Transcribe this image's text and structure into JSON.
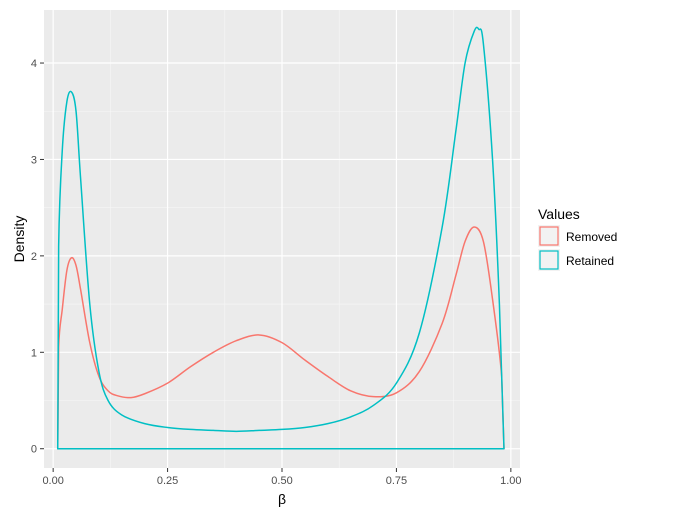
{
  "chart_data": {
    "type": "line",
    "subtype": "density",
    "xlabel": "β",
    "ylabel": "Density",
    "xlim": [
      -0.02,
      1.02
    ],
    "ylim": [
      -0.2,
      4.55
    ],
    "xticks": [
      0.0,
      0.25,
      0.5,
      0.75,
      1.0
    ],
    "xtick_labels": [
      "0.00",
      "0.25",
      "0.50",
      "0.75",
      "1.00"
    ],
    "yticks": [
      0,
      1,
      2,
      3,
      4
    ],
    "ytick_labels": [
      "0",
      "1",
      "2",
      "3",
      "4"
    ],
    "grid": true,
    "background": "#ebebeb",
    "legend": {
      "title": "Values",
      "position": "right"
    },
    "series": [
      {
        "name": "Removed",
        "color": "#f8766d",
        "x": [
          0.01,
          0.012,
          0.02,
          0.03,
          0.04,
          0.05,
          0.06,
          0.08,
          0.1,
          0.12,
          0.14,
          0.17,
          0.2,
          0.25,
          0.3,
          0.35,
          0.4,
          0.45,
          0.5,
          0.55,
          0.6,
          0.65,
          0.7,
          0.75,
          0.8,
          0.85,
          0.88,
          0.9,
          0.92,
          0.94,
          0.96,
          0.98,
          0.985
        ],
        "y": [
          0.0,
          1.05,
          1.45,
          1.85,
          1.98,
          1.9,
          1.65,
          1.1,
          0.75,
          0.6,
          0.55,
          0.53,
          0.57,
          0.68,
          0.85,
          1.0,
          1.12,
          1.18,
          1.1,
          0.92,
          0.75,
          0.6,
          0.54,
          0.58,
          0.8,
          1.3,
          1.8,
          2.15,
          2.3,
          2.15,
          1.55,
          0.75,
          0.0
        ]
      },
      {
        "name": "Retained",
        "color": "#00bfc4",
        "x": [
          0.01,
          0.012,
          0.02,
          0.03,
          0.04,
          0.05,
          0.06,
          0.08,
          0.1,
          0.12,
          0.15,
          0.2,
          0.25,
          0.3,
          0.35,
          0.4,
          0.45,
          0.5,
          0.55,
          0.6,
          0.65,
          0.7,
          0.75,
          0.8,
          0.85,
          0.88,
          0.9,
          0.92,
          0.93,
          0.94,
          0.96,
          0.975,
          0.985
        ],
        "y": [
          0.0,
          2.1,
          3.1,
          3.6,
          3.7,
          3.5,
          2.8,
          1.5,
          0.8,
          0.5,
          0.35,
          0.26,
          0.22,
          0.2,
          0.19,
          0.18,
          0.19,
          0.2,
          0.22,
          0.26,
          0.33,
          0.45,
          0.68,
          1.2,
          2.3,
          3.3,
          4.0,
          4.33,
          4.35,
          4.2,
          3.0,
          1.5,
          0.0
        ]
      }
    ]
  }
}
